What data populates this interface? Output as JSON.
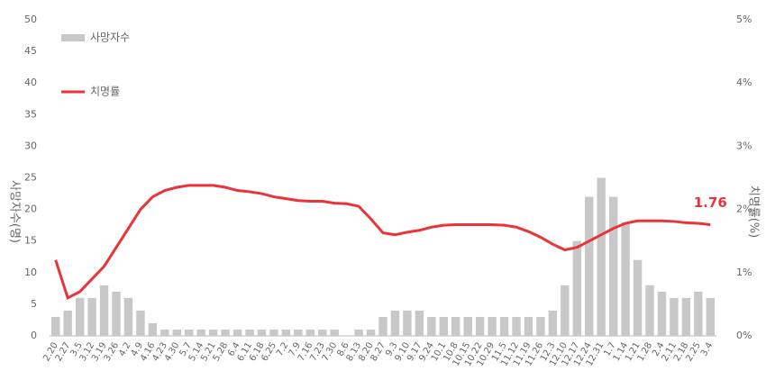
{
  "chart_data": {
    "type": "bar-line",
    "y_label": "사망자수(명)",
    "y2_label": "치명률(%)",
    "categories": [
      "2.20",
      "2.27",
      "3.5",
      "3.12",
      "3.19",
      "3.26",
      "4.2",
      "4.9",
      "4.16",
      "4.23",
      "4.30",
      "5.7",
      "5.14",
      "5.21",
      "5.28",
      "6.4",
      "6.11",
      "6.18",
      "6.25",
      "7.2",
      "7.9",
      "7.16",
      "7.23",
      "7.30",
      "8.6",
      "8.13",
      "8.20",
      "8.27",
      "9.3",
      "9.10",
      "9.17",
      "9.24",
      "10.1",
      "10.8",
      "10.15",
      "10.22",
      "10.29",
      "11.5",
      "11.12",
      "11.19",
      "11.26",
      "12.3",
      "12.10",
      "12.17",
      "12.24",
      "12.31",
      "1.7",
      "1.14",
      "1.21",
      "1.28",
      "2.4",
      "2.11",
      "2.18",
      "2.25",
      "3.4"
    ],
    "series": [
      {
        "name": "사망자수",
        "color": "#c8c8c8",
        "type": "bar",
        "values": [
          3,
          4,
          6,
          6,
          8,
          7,
          6,
          4,
          2,
          1,
          1,
          1,
          1,
          1,
          1,
          1,
          1,
          1,
          1,
          1,
          1,
          1,
          1,
          1,
          0,
          1,
          1,
          3,
          4,
          4,
          4,
          3,
          3,
          3,
          3,
          3,
          3,
          3,
          3,
          3,
          3,
          4,
          8,
          15,
          22,
          25,
          22,
          18,
          12,
          8,
          7,
          6,
          6,
          7,
          6
        ]
      },
      {
        "name": "치명률",
        "color": "#e8343a",
        "type": "line",
        "axis": "y2",
        "values": [
          1.2,
          0.6,
          0.7,
          0.9,
          1.1,
          1.4,
          1.7,
          2.0,
          2.2,
          2.3,
          2.35,
          2.38,
          2.38,
          2.38,
          2.35,
          2.3,
          2.28,
          2.25,
          2.2,
          2.17,
          2.14,
          2.13,
          2.13,
          2.1,
          2.09,
          2.05,
          1.85,
          1.63,
          1.6,
          1.64,
          1.67,
          1.72,
          1.75,
          1.76,
          1.76,
          1.76,
          1.76,
          1.75,
          1.72,
          1.65,
          1.56,
          1.45,
          1.36,
          1.4,
          1.5,
          1.6,
          1.7,
          1.78,
          1.82,
          1.82,
          1.82,
          1.81,
          1.79,
          1.78,
          1.76
        ],
        "value_labels": [
          null,
          null,
          null,
          null,
          null,
          null,
          null,
          null,
          null,
          null,
          null,
          null,
          null,
          null,
          null,
          null,
          null,
          null,
          null,
          null,
          null,
          null,
          null,
          null,
          null,
          null,
          null,
          null,
          null,
          null,
          null,
          null,
          null,
          null,
          null,
          null,
          null,
          null,
          null,
          null,
          null,
          null,
          null,
          null,
          null,
          null,
          null,
          null,
          null,
          null,
          null,
          null,
          null,
          null,
          "1.76"
        ]
      }
    ],
    "ylim": [
      0,
      50
    ],
    "yticks": [
      0,
      5,
      10,
      15,
      20,
      25,
      30,
      35,
      40,
      45,
      50
    ],
    "y2lim": [
      0,
      5
    ],
    "y2ticks": [
      {
        "value": 0,
        "label": "0%"
      },
      {
        "value": 1,
        "label": "1%"
      },
      {
        "value": 2,
        "label": "2%"
      },
      {
        "value": 3,
        "label": "3%"
      },
      {
        "value": 4,
        "label": "4%"
      },
      {
        "value": 5,
        "label": "5%"
      }
    ],
    "legend": "top-left"
  }
}
